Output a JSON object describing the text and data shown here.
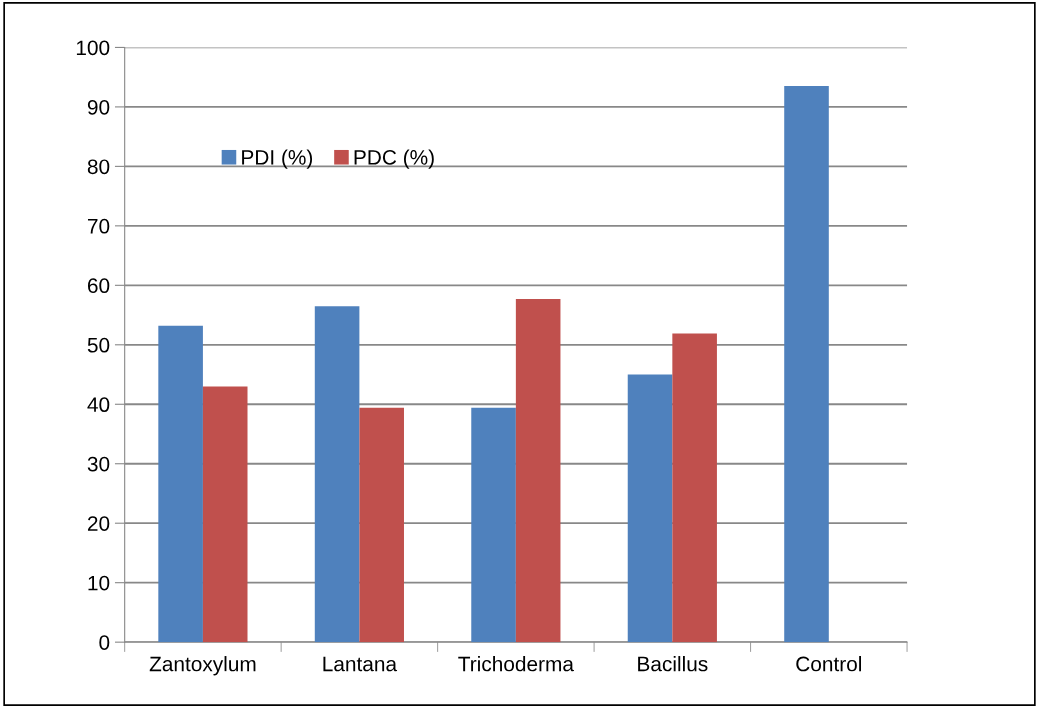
{
  "chart_data": {
    "type": "bar",
    "categories": [
      "Zantoxylum",
      "Lantana",
      "Trichoderma",
      "Bacillus",
      "Control"
    ],
    "series": [
      {
        "name": "PDI (%)",
        "color": "#4f81bd",
        "values": [
          53.2,
          56.5,
          39.4,
          45.0,
          93.5
        ]
      },
      {
        "name": "PDC (%)",
        "color": "#c0504d",
        "values": [
          43.0,
          39.4,
          57.7,
          51.9,
          null
        ]
      }
    ],
    "ylim": [
      0,
      100
    ],
    "yticks": [
      0,
      10,
      20,
      30,
      40,
      50,
      60,
      70,
      80,
      90,
      100
    ],
    "grid": "y",
    "legend": "top left"
  }
}
